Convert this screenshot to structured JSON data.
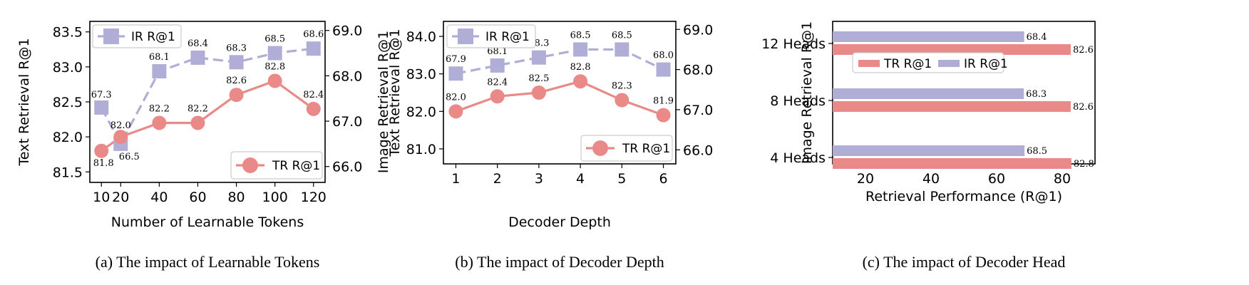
{
  "colors": {
    "tr": "#EA8A88",
    "ir": "#B0AED6"
  },
  "chart_data": [
    {
      "type": "line",
      "caption": "(a) The impact of Learnable Tokens",
      "xlabel": "Number of Learnable Tokens",
      "ylabel_left": "Text Retrieval R@1",
      "ylabel_right": "Image Retrieval R@1",
      "x": [
        10,
        20,
        40,
        60,
        80,
        100,
        120
      ],
      "x_ticks": [
        10,
        20,
        40,
        60,
        80,
        100,
        120
      ],
      "xlim": [
        4,
        126
      ],
      "ylim_left": [
        81.35,
        83.65
      ],
      "yticks_left": [
        "81.5",
        "82.0",
        "82.5",
        "83.0",
        "83.5"
      ],
      "ylim_right": [
        65.65,
        69.2
      ],
      "yticks_right": [
        "66.0",
        "67.0",
        "68.0",
        "69.0"
      ],
      "series": [
        {
          "name": "TR R@1",
          "axis": "left",
          "values": [
            81.8,
            82.0,
            82.2,
            82.2,
            82.6,
            82.8,
            82.4
          ],
          "labels": [
            "81.8",
            "82.0",
            "82.2",
            "82.2",
            "82.6",
            "82.8",
            "82.4"
          ]
        },
        {
          "name": "IR R@1",
          "axis": "right",
          "values": [
            67.3,
            66.5,
            68.1,
            68.4,
            68.3,
            68.5,
            68.6
          ],
          "labels": [
            "67.3",
            "66.5",
            "68.1",
            "68.4",
            "68.3",
            "68.5",
            "68.6"
          ]
        }
      ],
      "legend_ir": "IR R@1",
      "legend_tr": "TR R@1"
    },
    {
      "type": "line",
      "caption": "(b) The impact of Decoder Depth",
      "xlabel": "Decoder Depth",
      "ylabel_left": "Text Retrieval R@1",
      "ylabel_right": "Image Retrieval R@1",
      "x": [
        1,
        2,
        3,
        4,
        5,
        6
      ],
      "x_ticks": [
        1,
        2,
        3,
        4,
        5,
        6
      ],
      "xlim": [
        0.7,
        6.3
      ],
      "ylim_left": [
        80.6,
        84.4
      ],
      "yticks_left": [
        "81.0",
        "82.0",
        "83.0",
        "84.0"
      ],
      "ylim_right": [
        65.65,
        69.2
      ],
      "yticks_right": [
        "66.0",
        "67.0",
        "68.0",
        "69.0"
      ],
      "series": [
        {
          "name": "TR R@1",
          "axis": "left",
          "values": [
            82.0,
            82.4,
            82.5,
            82.8,
            82.3,
            81.9
          ],
          "labels": [
            "82.0",
            "82.4",
            "82.5",
            "82.8",
            "82.3",
            "81.9"
          ]
        },
        {
          "name": "IR R@1",
          "axis": "right",
          "values": [
            67.9,
            68.1,
            68.3,
            68.5,
            68.5,
            68.0
          ],
          "labels": [
            "67.9",
            "68.1",
            "68.3",
            "68.5",
            "68.5",
            "68.0"
          ]
        }
      ],
      "legend_ir": "IR R@1",
      "legend_tr": "TR R@1"
    },
    {
      "type": "bar",
      "orientation": "horizontal",
      "caption": "(c) The impact of Decoder Head",
      "xlabel": "Retrieval Performance (R@1)",
      "categories": [
        "12 Heads",
        "8 Heads",
        "4 Heads"
      ],
      "xlim": [
        10,
        90
      ],
      "x_ticks": [
        20,
        40,
        60,
        80
      ],
      "series": [
        {
          "name": "TR R@1",
          "values": [
            82.6,
            82.6,
            82.8
          ],
          "labels": [
            "82.6",
            "82.6",
            "82.8"
          ]
        },
        {
          "name": "IR R@1",
          "values": [
            68.4,
            68.3,
            68.5
          ],
          "labels": [
            "68.4",
            "68.3",
            "68.5"
          ]
        }
      ],
      "legend_tr": "TR R@1",
      "legend_ir": "IR R@1"
    }
  ]
}
